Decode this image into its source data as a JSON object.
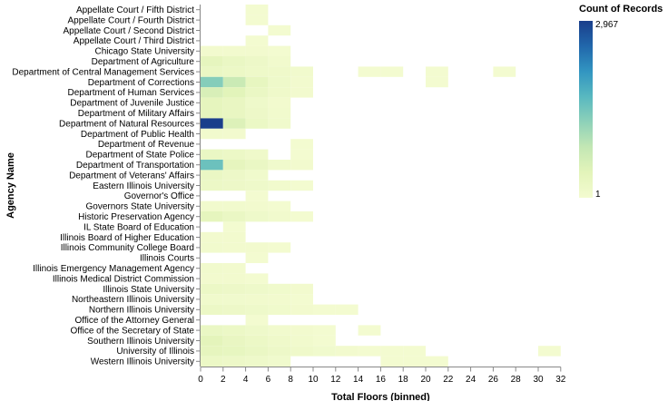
{
  "chart_data": {
    "type": "heatmap",
    "xlabel": "Total Floors (binned)",
    "ylabel": "Agency Name",
    "x_bin_step": 2,
    "xlim": [
      0,
      32
    ],
    "x_ticks": [
      0,
      2,
      4,
      6,
      8,
      10,
      12,
      14,
      16,
      18,
      20,
      22,
      24,
      26,
      28,
      30,
      32
    ],
    "categories": [
      "Appellate Court / Fifth District",
      "Appellate Court / Fourth District",
      "Appellate Court / Second District",
      "Appellate Court / Third District",
      "Chicago State University",
      "Department of Agriculture",
      "Department of Central Management Services",
      "Department of Corrections",
      "Department of Human Services",
      "Department of Juvenile Justice",
      "Department of Military Affairs",
      "Department of Natural Resources",
      "Department of Public Health",
      "Department of Revenue",
      "Department of State Police",
      "Department of Transportation",
      "Department of Veterans' Affairs",
      "Eastern Illinois University",
      "Governor's Office",
      "Governors State University",
      "Historic Preservation Agency",
      "IL State Board of Education",
      "Illinois Board of Higher Education",
      "Illinois Community College Board",
      "Illinois Courts",
      "Illinois Emergency Management Agency",
      "Illinois Medical District Commission",
      "Illinois State University",
      "Northeastern Illinois University",
      "Northern Illinois University",
      "Office of the Attorney General",
      "Office of the Secretary of State",
      "Southern Illinois University",
      "University of Illinois",
      "Western Illinois University"
    ],
    "cells": [
      {
        "agency": "Appellate Court / Fifth District",
        "bin_start": 4,
        "count": 1
      },
      {
        "agency": "Appellate Court / Fourth District",
        "bin_start": 4,
        "count": 1
      },
      {
        "agency": "Appellate Court / Second District",
        "bin_start": 6,
        "count": 1
      },
      {
        "agency": "Appellate Court / Third District",
        "bin_start": 4,
        "count": 1
      },
      {
        "agency": "Chicago State University",
        "bin_start": 0,
        "count": 2
      },
      {
        "agency": "Chicago State University",
        "bin_start": 2,
        "count": 2
      },
      {
        "agency": "Chicago State University",
        "bin_start": 4,
        "count": 2
      },
      {
        "agency": "Chicago State University",
        "bin_start": 6,
        "count": 1
      },
      {
        "agency": "Department of Agriculture",
        "bin_start": 0,
        "count": 60
      },
      {
        "agency": "Department of Agriculture",
        "bin_start": 2,
        "count": 30
      },
      {
        "agency": "Department of Agriculture",
        "bin_start": 4,
        "count": 15
      },
      {
        "agency": "Department of Agriculture",
        "bin_start": 6,
        "count": 3
      },
      {
        "agency": "Department of Central Management Services",
        "bin_start": 0,
        "count": 30
      },
      {
        "agency": "Department of Central Management Services",
        "bin_start": 2,
        "count": 20
      },
      {
        "agency": "Department of Central Management Services",
        "bin_start": 4,
        "count": 12
      },
      {
        "agency": "Department of Central Management Services",
        "bin_start": 6,
        "count": 8
      },
      {
        "agency": "Department of Central Management Services",
        "bin_start": 8,
        "count": 3
      },
      {
        "agency": "Department of Central Management Services",
        "bin_start": 14,
        "count": 1
      },
      {
        "agency": "Department of Central Management Services",
        "bin_start": 16,
        "count": 1
      },
      {
        "agency": "Department of Central Management Services",
        "bin_start": 20,
        "count": 1
      },
      {
        "agency": "Department of Central Management Services",
        "bin_start": 26,
        "count": 1
      },
      {
        "agency": "Department of Corrections",
        "bin_start": 0,
        "count": 700
      },
      {
        "agency": "Department of Corrections",
        "bin_start": 2,
        "count": 250
      },
      {
        "agency": "Department of Corrections",
        "bin_start": 4,
        "count": 50
      },
      {
        "agency": "Department of Corrections",
        "bin_start": 6,
        "count": 10
      },
      {
        "agency": "Department of Corrections",
        "bin_start": 8,
        "count": 2
      },
      {
        "agency": "Department of Corrections",
        "bin_start": 20,
        "count": 1
      },
      {
        "agency": "Department of Human Services",
        "bin_start": 0,
        "count": 150
      },
      {
        "agency": "Department of Human Services",
        "bin_start": 2,
        "count": 90
      },
      {
        "agency": "Department of Human Services",
        "bin_start": 4,
        "count": 30
      },
      {
        "agency": "Department of Human Services",
        "bin_start": 6,
        "count": 8
      },
      {
        "agency": "Department of Human Services",
        "bin_start": 8,
        "count": 2
      },
      {
        "agency": "Department of Juvenile Justice",
        "bin_start": 0,
        "count": 60
      },
      {
        "agency": "Department of Juvenile Justice",
        "bin_start": 2,
        "count": 40
      },
      {
        "agency": "Department of Juvenile Justice",
        "bin_start": 4,
        "count": 10
      },
      {
        "agency": "Department of Juvenile Justice",
        "bin_start": 6,
        "count": 2
      },
      {
        "agency": "Department of Military Affairs",
        "bin_start": 0,
        "count": 60
      },
      {
        "agency": "Department of Military Affairs",
        "bin_start": 2,
        "count": 40
      },
      {
        "agency": "Department of Military Affairs",
        "bin_start": 4,
        "count": 15
      },
      {
        "agency": "Department of Military Affairs",
        "bin_start": 6,
        "count": 3
      },
      {
        "agency": "Department of Natural Resources",
        "bin_start": 0,
        "count": 2967
      },
      {
        "agency": "Department of Natural Resources",
        "bin_start": 2,
        "count": 120
      },
      {
        "agency": "Department of Natural Resources",
        "bin_start": 4,
        "count": 25
      },
      {
        "agency": "Department of Natural Resources",
        "bin_start": 6,
        "count": 5
      },
      {
        "agency": "Department of Public Health",
        "bin_start": 0,
        "count": 3
      },
      {
        "agency": "Department of Public Health",
        "bin_start": 2,
        "count": 2
      },
      {
        "agency": "Department of Revenue",
        "bin_start": 8,
        "count": 1
      },
      {
        "agency": "Department of State Police",
        "bin_start": 0,
        "count": 30
      },
      {
        "agency": "Department of State Police",
        "bin_start": 2,
        "count": 20
      },
      {
        "agency": "Department of State Police",
        "bin_start": 4,
        "count": 8
      },
      {
        "agency": "Department of State Police",
        "bin_start": 8,
        "count": 1
      },
      {
        "agency": "Department of Transportation",
        "bin_start": 0,
        "count": 900
      },
      {
        "agency": "Department of Transportation",
        "bin_start": 2,
        "count": 60
      },
      {
        "agency": "Department of Transportation",
        "bin_start": 4,
        "count": 30
      },
      {
        "agency": "Department of Transportation",
        "bin_start": 6,
        "count": 5
      },
      {
        "agency": "Department of Transportation",
        "bin_start": 8,
        "count": 2
      },
      {
        "agency": "Department of Veterans' Affairs",
        "bin_start": 0,
        "count": 30
      },
      {
        "agency": "Department of Veterans' Affairs",
        "bin_start": 2,
        "count": 15
      },
      {
        "agency": "Department of Veterans' Affairs",
        "bin_start": 4,
        "count": 5
      },
      {
        "agency": "Eastern Illinois University",
        "bin_start": 0,
        "count": 20
      },
      {
        "agency": "Eastern Illinois University",
        "bin_start": 2,
        "count": 15
      },
      {
        "agency": "Eastern Illinois University",
        "bin_start": 4,
        "count": 10
      },
      {
        "agency": "Eastern Illinois University",
        "bin_start": 6,
        "count": 3
      },
      {
        "agency": "Eastern Illinois University",
        "bin_start": 8,
        "count": 1
      },
      {
        "agency": "Governor's Office",
        "bin_start": 4,
        "count": 1
      },
      {
        "agency": "Governors State University",
        "bin_start": 0,
        "count": 3
      },
      {
        "agency": "Governors State University",
        "bin_start": 2,
        "count": 3
      },
      {
        "agency": "Governors State University",
        "bin_start": 4,
        "count": 2
      },
      {
        "agency": "Governors State University",
        "bin_start": 6,
        "count": 1
      },
      {
        "agency": "Historic Preservation Agency",
        "bin_start": 0,
        "count": 60
      },
      {
        "agency": "Historic Preservation Agency",
        "bin_start": 2,
        "count": 30
      },
      {
        "agency": "Historic Preservation Agency",
        "bin_start": 4,
        "count": 10
      },
      {
        "agency": "Historic Preservation Agency",
        "bin_start": 6,
        "count": 3
      },
      {
        "agency": "Historic Preservation Agency",
        "bin_start": 8,
        "count": 1
      },
      {
        "agency": "IL State Board of Education",
        "bin_start": 2,
        "count": 1
      },
      {
        "agency": "Illinois Board of Higher Education",
        "bin_start": 0,
        "count": 2
      },
      {
        "agency": "Illinois Board of Higher Education",
        "bin_start": 2,
        "count": 2
      },
      {
        "agency": "Illinois Community College Board",
        "bin_start": 0,
        "count": 3
      },
      {
        "agency": "Illinois Community College Board",
        "bin_start": 2,
        "count": 2
      },
      {
        "agency": "Illinois Community College Board",
        "bin_start": 4,
        "count": 2
      },
      {
        "agency": "Illinois Community College Board",
        "bin_start": 6,
        "count": 1
      },
      {
        "agency": "Illinois Courts",
        "bin_start": 4,
        "count": 1
      },
      {
        "agency": "Illinois Emergency Management Agency",
        "bin_start": 0,
        "count": 3
      },
      {
        "agency": "Illinois Emergency Management Agency",
        "bin_start": 2,
        "count": 2
      },
      {
        "agency": "Illinois Medical District Commission",
        "bin_start": 0,
        "count": 2
      },
      {
        "agency": "Illinois Medical District Commission",
        "bin_start": 2,
        "count": 2
      },
      {
        "agency": "Illinois Medical District Commission",
        "bin_start": 4,
        "count": 1
      },
      {
        "agency": "Illinois State University",
        "bin_start": 0,
        "count": 20
      },
      {
        "agency": "Illinois State University",
        "bin_start": 2,
        "count": 15
      },
      {
        "agency": "Illinois State University",
        "bin_start": 4,
        "count": 10
      },
      {
        "agency": "Illinois State University",
        "bin_start": 6,
        "count": 5
      },
      {
        "agency": "Illinois State University",
        "bin_start": 8,
        "count": 2
      },
      {
        "agency": "Northeastern Illinois University",
        "bin_start": 0,
        "count": 5
      },
      {
        "agency": "Northeastern Illinois University",
        "bin_start": 2,
        "count": 4
      },
      {
        "agency": "Northeastern Illinois University",
        "bin_start": 4,
        "count": 3
      },
      {
        "agency": "Northeastern Illinois University",
        "bin_start": 6,
        "count": 2
      },
      {
        "agency": "Northeastern Illinois University",
        "bin_start": 8,
        "count": 1
      },
      {
        "agency": "Northern Illinois University",
        "bin_start": 0,
        "count": 20
      },
      {
        "agency": "Northern Illinois University",
        "bin_start": 2,
        "count": 15
      },
      {
        "agency": "Northern Illinois University",
        "bin_start": 4,
        "count": 10
      },
      {
        "agency": "Northern Illinois University",
        "bin_start": 6,
        "count": 5
      },
      {
        "agency": "Northern Illinois University",
        "bin_start": 8,
        "count": 2
      },
      {
        "agency": "Northern Illinois University",
        "bin_start": 10,
        "count": 1
      },
      {
        "agency": "Northern Illinois University",
        "bin_start": 12,
        "count": 1
      },
      {
        "agency": "Office of the Attorney General",
        "bin_start": 4,
        "count": 1
      },
      {
        "agency": "Office of the Secretary of State",
        "bin_start": 0,
        "count": 30
      },
      {
        "agency": "Office of the Secretary of State",
        "bin_start": 2,
        "count": 20
      },
      {
        "agency": "Office of the Secretary of State",
        "bin_start": 4,
        "count": 10
      },
      {
        "agency": "Office of the Secretary of State",
        "bin_start": 6,
        "count": 3
      },
      {
        "agency": "Office of the Secretary of State",
        "bin_start": 8,
        "count": 2
      },
      {
        "agency": "Office of the Secretary of State",
        "bin_start": 10,
        "count": 1
      },
      {
        "agency": "Office of the Secretary of State",
        "bin_start": 14,
        "count": 1
      },
      {
        "agency": "Southern Illinois University",
        "bin_start": 0,
        "count": 80
      },
      {
        "agency": "Southern Illinois University",
        "bin_start": 2,
        "count": 40
      },
      {
        "agency": "Southern Illinois University",
        "bin_start": 4,
        "count": 20
      },
      {
        "agency": "Southern Illinois University",
        "bin_start": 6,
        "count": 8
      },
      {
        "agency": "Southern Illinois University",
        "bin_start": 8,
        "count": 3
      },
      {
        "agency": "Southern Illinois University",
        "bin_start": 10,
        "count": 1
      },
      {
        "agency": "University of Illinois",
        "bin_start": 0,
        "count": 60
      },
      {
        "agency": "University of Illinois",
        "bin_start": 2,
        "count": 50
      },
      {
        "agency": "University of Illinois",
        "bin_start": 4,
        "count": 30
      },
      {
        "agency": "University of Illinois",
        "bin_start": 6,
        "count": 15
      },
      {
        "agency": "University of Illinois",
        "bin_start": 8,
        "count": 8
      },
      {
        "agency": "University of Illinois",
        "bin_start": 10,
        "count": 4
      },
      {
        "agency": "University of Illinois",
        "bin_start": 12,
        "count": 2
      },
      {
        "agency": "University of Illinois",
        "bin_start": 14,
        "count": 1
      },
      {
        "agency": "University of Illinois",
        "bin_start": 16,
        "count": 1
      },
      {
        "agency": "University of Illinois",
        "bin_start": 18,
        "count": 1
      },
      {
        "agency": "University of Illinois",
        "bin_start": 30,
        "count": 1
      },
      {
        "agency": "Western Illinois University",
        "bin_start": 0,
        "count": 20
      },
      {
        "agency": "Western Illinois University",
        "bin_start": 2,
        "count": 15
      },
      {
        "agency": "Western Illinois University",
        "bin_start": 4,
        "count": 10
      },
      {
        "agency": "Western Illinois University",
        "bin_start": 6,
        "count": 4
      },
      {
        "agency": "Western Illinois University",
        "bin_start": 16,
        "count": 1
      },
      {
        "agency": "Western Illinois University",
        "bin_start": 18,
        "count": 1
      },
      {
        "agency": "Western Illinois University",
        "bin_start": 20,
        "count": 1
      }
    ],
    "color_scale": {
      "title": "Count of Records",
      "min": 1,
      "max": 2967,
      "min_label": "1",
      "max_label": "2,967",
      "colors": [
        "#f3fbd0",
        "#e3f4ba",
        "#c3e7b4",
        "#8ed1b9",
        "#58b8c0",
        "#3295c1",
        "#2167ab",
        "#1a3e8b"
      ]
    },
    "grid": false,
    "legend_position": "top-right"
  }
}
